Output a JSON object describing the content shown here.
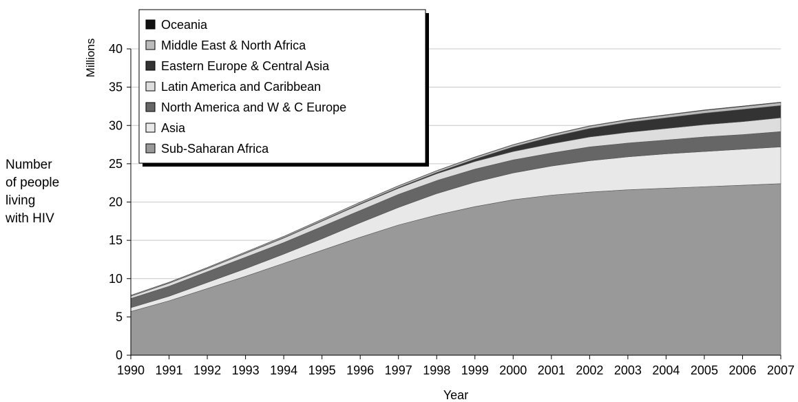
{
  "side_label": [
    "Number",
    "of people",
    "living",
    "with HIV"
  ],
  "chart_data": {
    "type": "area",
    "stacked": true,
    "xlabel": "Year",
    "ylabel": "Millions",
    "ylim": [
      0,
      40
    ],
    "yticks": [
      0,
      5,
      10,
      15,
      20,
      25,
      30,
      35,
      40
    ],
    "grid": true,
    "legend_position": "top-left",
    "x": [
      1990,
      1991,
      1992,
      1993,
      1994,
      1995,
      1996,
      1997,
      1998,
      1999,
      2000,
      2001,
      2002,
      2003,
      2004,
      2005,
      2006,
      2007
    ],
    "series": [
      {
        "name": "Sub-Saharan Africa",
        "color": "#999999",
        "values": [
          5.7,
          7.1,
          8.7,
          10.3,
          12.0,
          13.7,
          15.4,
          17.0,
          18.3,
          19.4,
          20.3,
          20.9,
          21.3,
          21.6,
          21.8,
          22.0,
          22.2,
          22.4
        ]
      },
      {
        "name": "Asia",
        "color": "#e8e8e8",
        "values": [
          0.5,
          0.6,
          0.8,
          1.0,
          1.2,
          1.5,
          1.9,
          2.3,
          2.8,
          3.2,
          3.5,
          3.8,
          4.1,
          4.3,
          4.5,
          4.6,
          4.7,
          4.8
        ]
      },
      {
        "name": "North America and W & C Europe",
        "color": "#666666",
        "values": [
          1.2,
          1.3,
          1.4,
          1.5,
          1.5,
          1.6,
          1.6,
          1.7,
          1.7,
          1.7,
          1.7,
          1.7,
          1.8,
          1.8,
          1.8,
          1.9,
          1.9,
          2.0
        ]
      },
      {
        "name": "Latin America and Caribbean",
        "color": "#dddddd",
        "values": [
          0.3,
          0.4,
          0.4,
          0.5,
          0.6,
          0.7,
          0.8,
          0.8,
          0.9,
          1.0,
          1.1,
          1.2,
          1.3,
          1.4,
          1.5,
          1.6,
          1.7,
          1.8
        ]
      },
      {
        "name": "Eastern Europe & Central Asia",
        "color": "#333333",
        "values": [
          0.02,
          0.02,
          0.03,
          0.04,
          0.05,
          0.06,
          0.08,
          0.1,
          0.15,
          0.3,
          0.6,
          0.9,
          1.1,
          1.3,
          1.4,
          1.5,
          1.6,
          1.6
        ]
      },
      {
        "name": "Middle East & North Africa",
        "color": "#bbbbbb",
        "values": [
          0.1,
          0.1,
          0.12,
          0.13,
          0.15,
          0.17,
          0.19,
          0.2,
          0.22,
          0.24,
          0.26,
          0.28,
          0.3,
          0.32,
          0.34,
          0.36,
          0.37,
          0.38
        ]
      },
      {
        "name": "Oceania",
        "color": "#111111",
        "values": [
          0.01,
          0.01,
          0.01,
          0.01,
          0.02,
          0.02,
          0.02,
          0.03,
          0.03,
          0.04,
          0.04,
          0.05,
          0.05,
          0.06,
          0.06,
          0.07,
          0.07,
          0.07
        ]
      }
    ],
    "legend_order": [
      "Oceania",
      "Middle East & North Africa",
      "Eastern Europe & Central Asia",
      "Latin America and Caribbean",
      "North America and W & C Europe",
      "Asia",
      "Sub-Saharan Africa"
    ]
  }
}
